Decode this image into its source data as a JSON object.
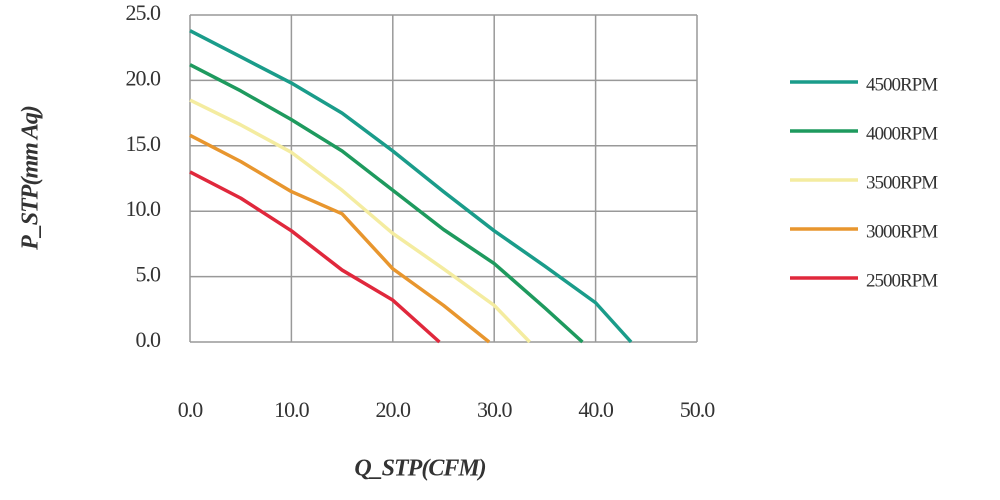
{
  "chart_data": {
    "type": "line",
    "xlabel": "Q_STP(CFM)",
    "ylabel": "P_STP(mm Aq)",
    "xlim": [
      0,
      50
    ],
    "ylim": [
      0,
      25
    ],
    "xticks": [
      {
        "value": 0,
        "label": "0.0"
      },
      {
        "value": 10,
        "label": "10.0"
      },
      {
        "value": 20,
        "label": "20.0"
      },
      {
        "value": 30,
        "label": "30.0"
      },
      {
        "value": 40,
        "label": "40.0"
      },
      {
        "value": 50,
        "label": "50.0"
      }
    ],
    "yticks": [
      {
        "value": 0,
        "label": "0.0"
      },
      {
        "value": 5,
        "label": "5.0"
      },
      {
        "value": 10,
        "label": "10.0"
      },
      {
        "value": 15,
        "label": "15.0"
      },
      {
        "value": 20,
        "label": "20.0"
      },
      {
        "value": 25,
        "label": "25.0"
      }
    ],
    "grid": true,
    "legend": "right",
    "series": [
      {
        "name": "4500RPM",
        "color": "#1a9c8a",
        "x": [
          0,
          5,
          10,
          15,
          20,
          25,
          30,
          35,
          40,
          43.5
        ],
        "values": [
          23.8,
          21.8,
          19.8,
          17.5,
          14.6,
          11.5,
          8.5,
          5.8,
          3.0,
          0
        ]
      },
      {
        "name": "4000RPM",
        "color": "#1e9a5e",
        "x": [
          0,
          5,
          10,
          15,
          20,
          25,
          30,
          35,
          38.7
        ],
        "values": [
          21.2,
          19.2,
          17.0,
          14.6,
          11.6,
          8.6,
          6.0,
          2.6,
          0
        ]
      },
      {
        "name": "3500RPM",
        "color": "#f4eca0",
        "x": [
          0,
          5,
          10,
          15,
          20,
          25,
          30,
          33.5
        ],
        "values": [
          18.5,
          16.6,
          14.5,
          11.6,
          8.3,
          5.6,
          2.8,
          0
        ]
      },
      {
        "name": "3000RPM",
        "color": "#e8962e",
        "x": [
          0,
          5,
          10,
          15,
          20,
          25,
          29.5
        ],
        "values": [
          15.8,
          13.8,
          11.5,
          9.8,
          5.6,
          2.8,
          0
        ]
      },
      {
        "name": "2500RPM",
        "color": "#e0283c",
        "x": [
          0,
          5,
          10,
          15,
          20,
          24.6
        ],
        "values": [
          13.0,
          11.0,
          8.5,
          5.5,
          3.2,
          0
        ]
      }
    ]
  }
}
